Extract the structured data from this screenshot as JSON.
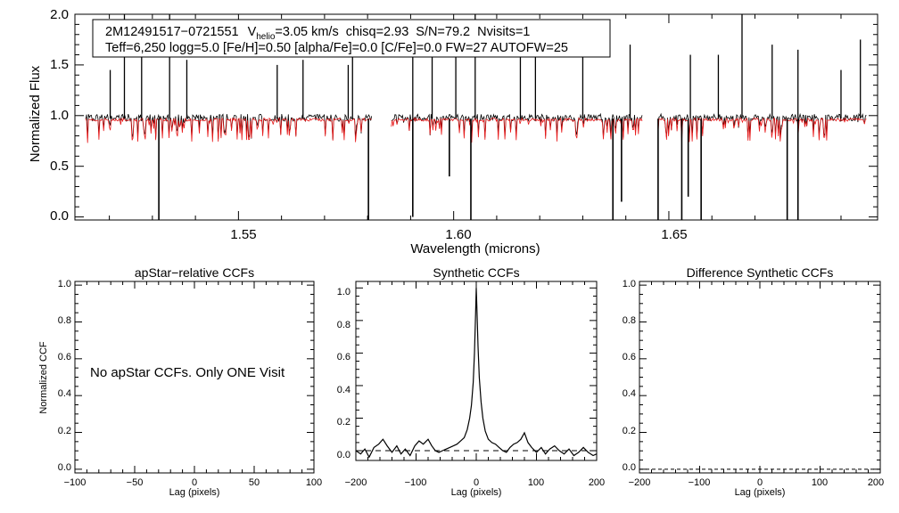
{
  "chart_data": [
    {
      "type": "line",
      "id": "spectrum",
      "xlabel": "Wavelength (microns)",
      "ylabel": "Normalized Flux",
      "xlim": [
        1.512,
        1.6985
      ],
      "ylim": [
        -0.03,
        2.0
      ],
      "x_ticks": [
        "1.55",
        "1.60",
        "1.65"
      ],
      "y_ticks": [
        "0.0",
        "0.5",
        "1.0",
        "1.5",
        "2.0"
      ],
      "annotation": {
        "id_text": "2M12491517−0721551",
        "vhelio_prefix": "V",
        "vhelio_sub": "helio",
        "vhelio_value": "=3.05 km/s",
        "chisq": "chisq=2.93",
        "snr": "S/N=79.2",
        "nvisits": "Nvisits=1",
        "params": "Teff=6,250 logg=5.0 [Fe/H]=0.50 [alpha/Fe]=0.0 [C/Fe]=0.0 FW=27 AUTOFW=25"
      },
      "chip_ranges": [
        [
          1.5145,
          1.581
        ],
        [
          1.5855,
          1.644
        ],
        [
          1.6475,
          1.696
        ]
      ],
      "continuum": 0.97,
      "emission_spikes": [
        [
          1.5202,
          1.45
        ],
        [
          1.5235,
          2.0
        ],
        [
          1.5275,
          1.8
        ],
        [
          1.534,
          2.0
        ],
        [
          1.538,
          1.55
        ],
        [
          1.559,
          1.5
        ],
        [
          1.565,
          1.55
        ],
        [
          1.5755,
          1.5
        ],
        [
          1.5765,
          1.75
        ],
        [
          1.5905,
          1.8
        ],
        [
          1.595,
          1.6
        ],
        [
          1.6005,
          1.6
        ],
        [
          1.605,
          2.0
        ],
        [
          1.6155,
          1.6
        ],
        [
          1.619,
          1.9
        ],
        [
          1.63,
          1.65
        ],
        [
          1.641,
          1.7
        ],
        [
          1.655,
          1.6
        ],
        [
          1.6615,
          1.6
        ],
        [
          1.667,
          2.0
        ],
        [
          1.674,
          1.7
        ],
        [
          1.68,
          1.65
        ],
        [
          1.69,
          1.45
        ],
        [
          1.6945,
          1.75
        ]
      ],
      "deep_absorption": [
        [
          1.5315,
          -0.03
        ],
        [
          1.5802,
          -0.03
        ],
        [
          1.5905,
          0.0
        ],
        [
          1.599,
          0.4
        ],
        [
          1.604,
          -0.03
        ],
        [
          1.637,
          -0.03
        ],
        [
          1.639,
          0.15
        ],
        [
          1.6475,
          -0.03
        ],
        [
          1.653,
          -0.03
        ],
        [
          1.6545,
          0.2
        ],
        [
          1.6575,
          -0.03
        ],
        [
          1.6775,
          -0.03
        ],
        [
          1.68,
          -0.03
        ]
      ],
      "series": [
        {
          "name": "observed",
          "color": "#000000"
        },
        {
          "name": "model",
          "color": "#e8191a"
        }
      ]
    },
    {
      "type": "line",
      "id": "apstar_ccf",
      "title": "apStar−relative CCFs",
      "xlabel": "Lag (pixels)",
      "ylabel": "Normalized CCF",
      "xlim": [
        -100,
        100
      ],
      "ylim": [
        -0.02,
        1.02
      ],
      "x_ticks": [
        "−100",
        "−50",
        "0",
        "50",
        "100"
      ],
      "y_ticks": [
        "0.0",
        "0.2",
        "0.4",
        "0.6",
        "0.8",
        "1.0"
      ],
      "message": "No apStar CCFs.  Only ONE Visit"
    },
    {
      "type": "line",
      "id": "synthetic_ccf",
      "title": "Synthetic CCFs",
      "xlabel": "Lag (pixels)",
      "xlim": [
        -200,
        200
      ],
      "ylim": [
        -0.06,
        1.04
      ],
      "x_ticks": [
        "−200",
        "−100",
        "0",
        "100",
        "200"
      ],
      "y_ticks": [
        "0.0",
        "0.2",
        "0.4",
        "0.6",
        "0.8",
        "1.0"
      ],
      "reference_line": 0.0,
      "points": [
        [
          -200,
          0.0
        ],
        [
          -192,
          -0.02
        ],
        [
          -185,
          0.01
        ],
        [
          -178,
          -0.04
        ],
        [
          -170,
          0.02
        ],
        [
          -162,
          0.04
        ],
        [
          -155,
          0.07
        ],
        [
          -148,
          0.03
        ],
        [
          -140,
          -0.01
        ],
        [
          -132,
          0.03
        ],
        [
          -125,
          -0.02
        ],
        [
          -118,
          0.01
        ],
        [
          -110,
          -0.03
        ],
        [
          -102,
          0.03
        ],
        [
          -95,
          0.06
        ],
        [
          -88,
          0.04
        ],
        [
          -80,
          0.07
        ],
        [
          -74,
          0.03
        ],
        [
          -68,
          0.0
        ],
        [
          -62,
          -0.01
        ],
        [
          -56,
          0.0
        ],
        [
          -50,
          0.01
        ],
        [
          -44,
          0.02
        ],
        [
          -38,
          0.03
        ],
        [
          -32,
          0.04
        ],
        [
          -26,
          0.06
        ],
        [
          -20,
          0.08
        ],
        [
          -15,
          0.13
        ],
        [
          -11,
          0.2
        ],
        [
          -8,
          0.28
        ],
        [
          -5,
          0.42
        ],
        [
          -3,
          0.6
        ],
        [
          -1,
          0.85
        ],
        [
          0,
          1.0
        ],
        [
          1,
          0.88
        ],
        [
          3,
          0.64
        ],
        [
          5,
          0.45
        ],
        [
          8,
          0.3
        ],
        [
          11,
          0.2
        ],
        [
          15,
          0.12
        ],
        [
          20,
          0.07
        ],
        [
          26,
          0.05
        ],
        [
          32,
          0.04
        ],
        [
          38,
          0.02
        ],
        [
          44,
          0.0
        ],
        [
          50,
          -0.01
        ],
        [
          56,
          0.02
        ],
        [
          62,
          0.04
        ],
        [
          68,
          0.05
        ],
        [
          74,
          0.07
        ],
        [
          80,
          0.11
        ],
        [
          86,
          0.05
        ],
        [
          92,
          0.02
        ],
        [
          100,
          -0.01
        ],
        [
          108,
          0.02
        ],
        [
          115,
          -0.02
        ],
        [
          122,
          0.01
        ],
        [
          130,
          0.03
        ],
        [
          138,
          0.0
        ],
        [
          146,
          -0.02
        ],
        [
          154,
          0.01
        ],
        [
          162,
          -0.03
        ],
        [
          170,
          -0.01
        ],
        [
          178,
          0.02
        ],
        [
          186,
          -0.01
        ],
        [
          194,
          -0.03
        ],
        [
          200,
          -0.02
        ]
      ]
    },
    {
      "type": "line",
      "id": "difference_ccf",
      "title": "Difference Synthetic CCFs",
      "xlabel": "Lag (pixels)",
      "xlim": [
        -200,
        200
      ],
      "ylim": [
        -0.02,
        1.02
      ],
      "x_ticks": [
        "−200",
        "−100",
        "0",
        "100",
        "200"
      ],
      "y_ticks": [
        "0.0",
        "0.2",
        "0.4",
        "0.6",
        "0.8",
        "1.0"
      ],
      "reference_line": 0.0
    }
  ]
}
